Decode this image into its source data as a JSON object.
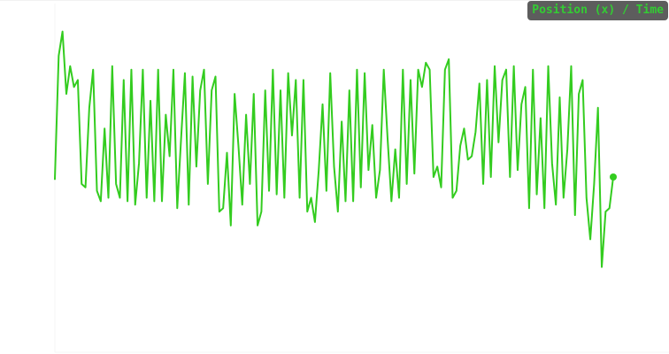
{
  "chart_data": {
    "type": "line",
    "title": "",
    "xlabel": "",
    "ylabel": "",
    "legend": {
      "label": "Position (x) / Time",
      "placement": "top-right"
    },
    "colors": {
      "line": "#33cc1f",
      "badge_bg": "#5d5d5d",
      "badge_text": "#33cc33"
    },
    "grid": false,
    "xlim": [
      0,
      630
    ],
    "ylim": [
      -2.3,
      2.3
    ],
    "end_marker": true,
    "series": [
      {
        "values": [
          -0.03,
          1.75,
          2.1,
          1.2,
          1.6,
          1.3,
          1.4,
          -0.1,
          -0.15,
          1.0,
          1.55,
          -0.2,
          -0.35,
          0.7,
          -0.3,
          1.6,
          -0.1,
          -0.3,
          1.4,
          -0.35,
          1.55,
          -0.4,
          0.2,
          1.55,
          -0.3,
          1.1,
          -0.35,
          1.55,
          -0.35,
          0.9,
          0.3,
          1.55,
          -0.45,
          0.55,
          1.5,
          -0.4,
          1.45,
          0.15,
          1.25,
          1.55,
          -0.1,
          1.25,
          1.45,
          -0.5,
          -0.45,
          0.35,
          -0.7,
          1.2,
          0.45,
          -0.4,
          0.9,
          -0.1,
          1.2,
          -0.7,
          -0.5,
          1.25,
          -0.2,
          1.55,
          -0.25,
          1.25,
          -0.3,
          1.5,
          0.6,
          1.4,
          -0.3,
          1.4,
          -0.5,
          -0.3,
          -0.65,
          0.1,
          1.05,
          -0.2,
          1.5,
          0.15,
          -0.5,
          0.8,
          -0.35,
          1.25,
          -0.35,
          1.55,
          -0.15,
          1.5,
          0.1,
          0.75,
          -0.3,
          0.1,
          1.55,
          0.55,
          -0.35,
          0.4,
          -0.3,
          1.55,
          -0.1,
          1.4,
          0.05,
          1.55,
          1.3,
          1.65,
          1.55,
          0.0,
          0.15,
          -0.15,
          1.55,
          1.7,
          -0.3,
          -0.2,
          0.45,
          0.7,
          0.25,
          0.3,
          0.65,
          1.35,
          -0.1,
          1.4,
          0.0,
          1.6,
          0.5,
          1.4,
          1.55,
          0.0,
          1.6,
          0.1,
          1.05,
          1.3,
          -0.45,
          1.55,
          -0.25,
          0.85,
          -0.45,
          1.6,
          0.2,
          -0.4,
          1.15,
          -0.3,
          0.4,
          1.6,
          -0.55,
          1.2,
          1.4,
          -0.3,
          -0.9,
          -0.1,
          1.0,
          -1.3,
          -0.5,
          -0.45,
          0.0
        ],
        "marker_last": true
      }
    ]
  }
}
